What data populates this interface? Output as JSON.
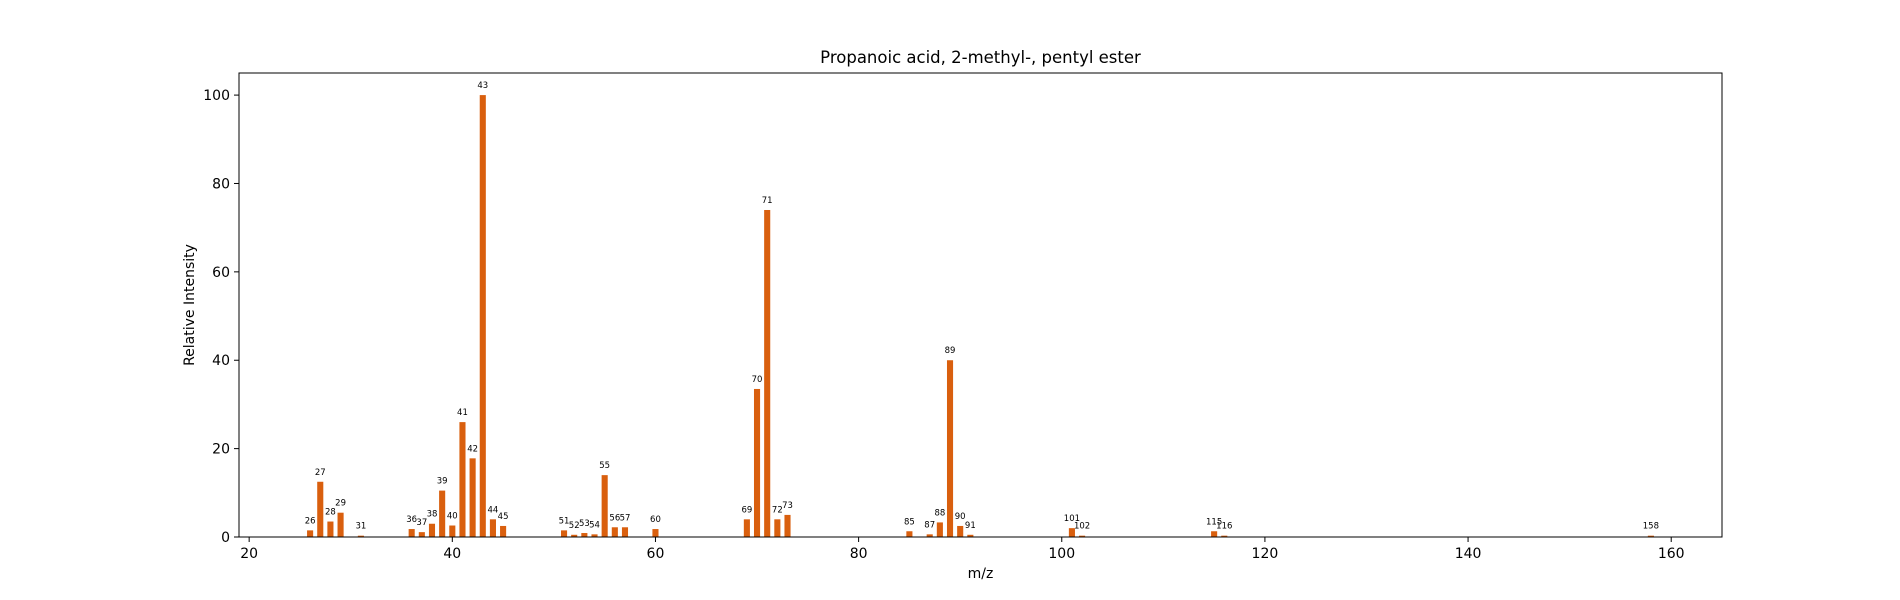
{
  "chart_data": {
    "type": "bar",
    "title": "Propanoic acid, 2-methyl-, pentyl ester",
    "xlabel": "m/z",
    "ylabel": "Relative Intensity",
    "xlim": [
      19,
      165
    ],
    "ylim": [
      0,
      105
    ],
    "xticks": [
      20,
      40,
      60,
      80,
      100,
      120,
      140,
      160
    ],
    "yticks": [
      0,
      20,
      40,
      60,
      80,
      100
    ],
    "bar_color": "#d95f0e",
    "grid": false,
    "legend": "none",
    "points": [
      {
        "x": 26,
        "y": 1.5
      },
      {
        "x": 27,
        "y": 12.5
      },
      {
        "x": 28,
        "y": 3.5
      },
      {
        "x": 29,
        "y": 5.5
      },
      {
        "x": 31,
        "y": 0.3
      },
      {
        "x": 36,
        "y": 1.8
      },
      {
        "x": 37,
        "y": 1.1
      },
      {
        "x": 38,
        "y": 3.0
      },
      {
        "x": 39,
        "y": 10.5
      },
      {
        "x": 40,
        "y": 2.6
      },
      {
        "x": 41,
        "y": 26.0
      },
      {
        "x": 42,
        "y": 17.8
      },
      {
        "x": 43,
        "y": 100.0
      },
      {
        "x": 44,
        "y": 4.0
      },
      {
        "x": 45,
        "y": 2.5
      },
      {
        "x": 51,
        "y": 1.5
      },
      {
        "x": 52,
        "y": 0.5
      },
      {
        "x": 53,
        "y": 0.9
      },
      {
        "x": 54,
        "y": 0.6
      },
      {
        "x": 55,
        "y": 14.0
      },
      {
        "x": 56,
        "y": 2.2
      },
      {
        "x": 57,
        "y": 2.2
      },
      {
        "x": 60,
        "y": 1.8
      },
      {
        "x": 69,
        "y": 4.0
      },
      {
        "x": 70,
        "y": 33.5
      },
      {
        "x": 71,
        "y": 74.0
      },
      {
        "x": 72,
        "y": 4.0
      },
      {
        "x": 73,
        "y": 5.0
      },
      {
        "x": 85,
        "y": 1.3
      },
      {
        "x": 87,
        "y": 0.6
      },
      {
        "x": 88,
        "y": 3.3
      },
      {
        "x": 89,
        "y": 40.0
      },
      {
        "x": 90,
        "y": 2.5
      },
      {
        "x": 91,
        "y": 0.5
      },
      {
        "x": 101,
        "y": 2.0
      },
      {
        "x": 102,
        "y": 0.3
      },
      {
        "x": 115,
        "y": 1.3
      },
      {
        "x": 116,
        "y": 0.3
      },
      {
        "x": 158,
        "y": 0.3
      }
    ]
  }
}
